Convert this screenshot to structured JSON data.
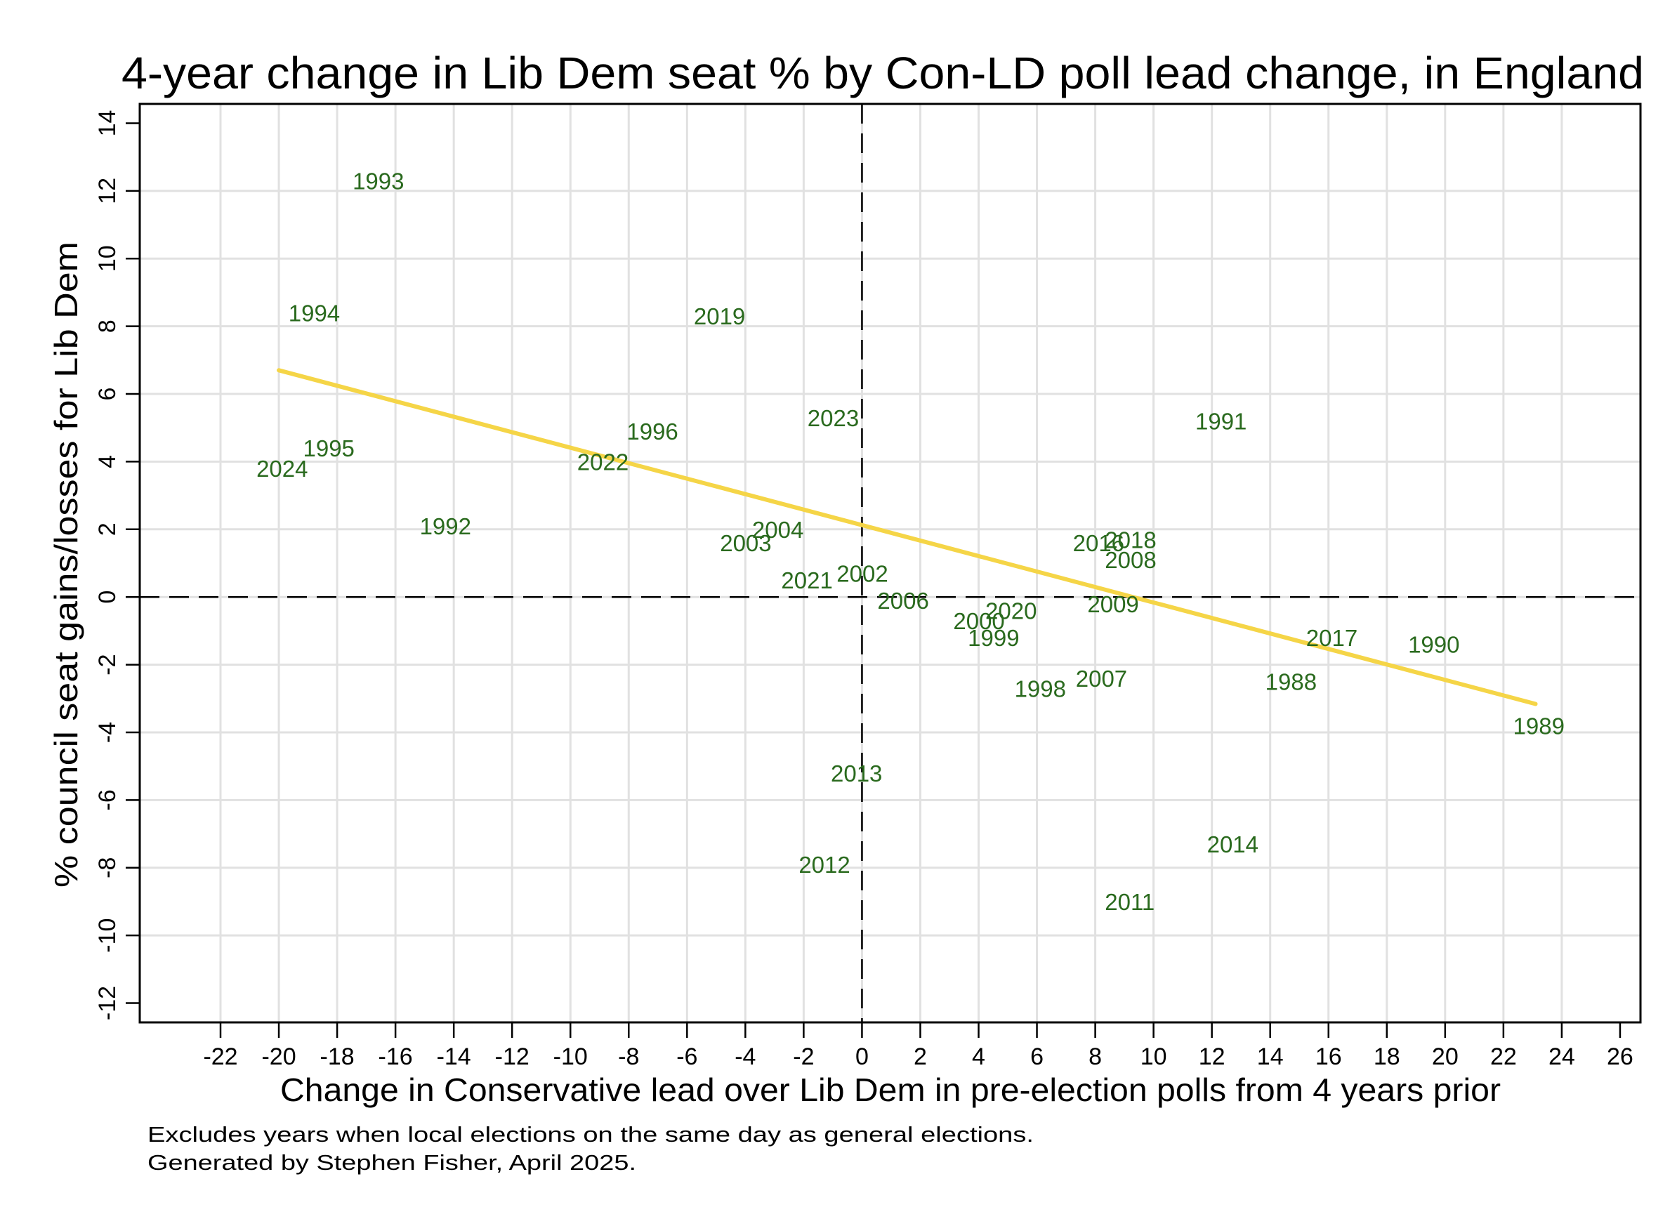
{
  "chart_data": {
    "type": "scatter",
    "title": "4-year change in Lib Dem seat % by Con-LD poll lead change, in England",
    "xlabel": "Change in Conservative lead over Lib Dem in pre-election polls from 4 years prior",
    "ylabel": "% council seat gains/losses for Lib Dem",
    "notes": [
      "Excludes years when local elections on the same day as general elections.",
      "Generated by Stephen Fisher, April 2025."
    ],
    "xlim": [
      -24.77,
      26.7
    ],
    "ylim": [
      -12.57,
      14.57
    ],
    "x_ticks": [
      -22,
      -20,
      -18,
      -16,
      -14,
      -12,
      -10,
      -8,
      -6,
      -4,
      -2,
      0,
      2,
      4,
      6,
      8,
      10,
      12,
      14,
      16,
      18,
      20,
      22,
      24,
      26
    ],
    "y_ticks": [
      -12,
      -10,
      -8,
      -6,
      -4,
      -2,
      0,
      2,
      4,
      6,
      8,
      10,
      12,
      14
    ],
    "x_gridlines": [
      -22,
      -20,
      -18,
      -16,
      -14,
      -12,
      -10,
      -8,
      -6,
      -4,
      -2,
      0,
      2,
      4,
      6,
      8,
      10,
      12,
      14,
      16,
      18,
      20,
      22,
      24
    ],
    "y_gridlines": [
      -10,
      -8,
      -6,
      -4,
      -2,
      0,
      2,
      4,
      6,
      8,
      10,
      12
    ],
    "grid": true,
    "reference_lines": {
      "x": 0,
      "y": 0,
      "style": "dashed"
    },
    "marker": "none (year labels only)",
    "label_color": "#2a6a1e",
    "points": [
      {
        "label": "1988",
        "x": 13.3,
        "y": -2.5
      },
      {
        "label": "1989",
        "x": 21.8,
        "y": -3.8
      },
      {
        "label": "1990",
        "x": 18.2,
        "y": -1.4
      },
      {
        "label": "1991",
        "x": 10.9,
        "y": 5.2
      },
      {
        "label": "1992",
        "x": -15.7,
        "y": 2.1
      },
      {
        "label": "1993",
        "x": -18.0,
        "y": 12.3
      },
      {
        "label": "1994",
        "x": -20.2,
        "y": 8.4
      },
      {
        "label": "1995",
        "x": -19.7,
        "y": 4.4
      },
      {
        "label": "1996",
        "x": -8.6,
        "y": 4.9
      },
      {
        "label": "1998",
        "x": 4.7,
        "y": -2.7
      },
      {
        "label": "1999",
        "x": 3.1,
        "y": -1.2
      },
      {
        "label": "2000",
        "x": 2.6,
        "y": -0.7
      },
      {
        "label": "2002",
        "x": -1.4,
        "y": 0.7
      },
      {
        "label": "2003",
        "x": -5.4,
        "y": 1.6
      },
      {
        "label": "2004",
        "x": -4.3,
        "y": 2.0
      },
      {
        "label": "2006",
        "x": 0.0,
        "y": -0.1
      },
      {
        "label": "2007",
        "x": 6.8,
        "y": -2.4
      },
      {
        "label": "2008",
        "x": 7.8,
        "y": 1.1
      },
      {
        "label": "2009",
        "x": 7.2,
        "y": -0.2
      },
      {
        "label": "2011",
        "x": 7.8,
        "y": -9.0
      },
      {
        "label": "2012",
        "x": -2.7,
        "y": -7.9
      },
      {
        "label": "2013",
        "x": -1.6,
        "y": -5.2
      },
      {
        "label": "2014",
        "x": 11.3,
        "y": -7.3
      },
      {
        "label": "2016",
        "x": 6.7,
        "y": 1.6
      },
      {
        "label": "2017",
        "x": 14.7,
        "y": -1.2
      },
      {
        "label": "2018",
        "x": 7.8,
        "y": 1.7
      },
      {
        "label": "2019",
        "x": -6.3,
        "y": 8.3
      },
      {
        "label": "2020",
        "x": 3.7,
        "y": -0.4
      },
      {
        "label": "2021",
        "x": -3.3,
        "y": 0.5
      },
      {
        "label": "2022",
        "x": -10.3,
        "y": 4.0
      },
      {
        "label": "2023",
        "x": -2.4,
        "y": 5.3
      },
      {
        "label": "2024",
        "x": -21.3,
        "y": 3.8
      }
    ],
    "fit_line": {
      "type": "linear",
      "color": "#f5d547",
      "x_start": -20.0,
      "y_start": 6.7,
      "x_end": 23.1,
      "y_end": -3.16,
      "intercept": 2.12,
      "slope": -0.229
    }
  }
}
